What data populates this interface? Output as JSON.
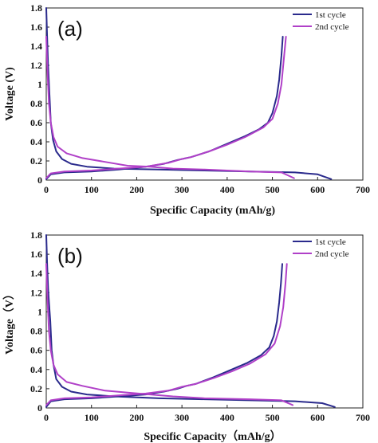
{
  "chart_data": [
    {
      "type": "line",
      "panel_label": "(a)",
      "xlabel": "Specific Capacity (mAh/g)",
      "ylabel": "Voltage (V)",
      "xlim": [
        0,
        700
      ],
      "ylim": [
        0,
        1.8
      ],
      "xticks": [
        0,
        100,
        200,
        300,
        400,
        500,
        600,
        700
      ],
      "yticks": [
        0,
        0.2,
        0.4,
        0.6,
        0.8,
        1,
        1.2,
        1.4,
        1.6,
        1.8
      ],
      "grid": false,
      "legend_position": "top-right",
      "series": [
        {
          "name": "1st cycle",
          "color": "#2a2a8c",
          "segments": [
            {
              "points": [
                [
                  0,
                  1.8
                ],
                [
                  2,
                  1.5
                ],
                [
                  4,
                  1.2
                ],
                [
                  7,
                  0.9
                ],
                [
                  10,
                  0.6
                ],
                [
                  15,
                  0.42
                ],
                [
                  22,
                  0.3
                ],
                [
                  35,
                  0.22
                ],
                [
                  55,
                  0.17
                ],
                [
                  90,
                  0.14
                ],
                [
                  150,
                  0.12
                ],
                [
                  250,
                  0.11
                ],
                [
                  350,
                  0.1
                ],
                [
                  450,
                  0.09
                ],
                [
                  550,
                  0.08
                ],
                [
                  600,
                  0.06
                ],
                [
                  630,
                  0.01
                ]
              ]
            },
            {
              "points": [
                [
                  0,
                  0.01
                ],
                [
                  10,
                  0.06
                ],
                [
                  40,
                  0.08
                ],
                [
                  100,
                  0.09
                ],
                [
                  160,
                  0.11
                ],
                [
                  220,
                  0.14
                ],
                [
                  260,
                  0.17
                ],
                [
                  290,
                  0.21
                ],
                [
                  310,
                  0.23
                ],
                [
                  320,
                  0.24
                ],
                [
                  360,
                  0.3
                ],
                [
                  400,
                  0.38
                ],
                [
                  440,
                  0.46
                ],
                [
                  470,
                  0.53
                ],
                [
                  490,
                  0.6
                ],
                [
                  500,
                  0.7
                ],
                [
                  510,
                  0.88
                ],
                [
                  515,
                  1.05
                ],
                [
                  520,
                  1.3
                ],
                [
                  523,
                  1.5
                ]
              ]
            }
          ]
        },
        {
          "name": "2nd cycle",
          "color": "#b040c8",
          "segments": [
            {
              "points": [
                [
                  0,
                  1.5
                ],
                [
                  3,
                  1.1
                ],
                [
                  6,
                  0.8
                ],
                [
                  10,
                  0.6
                ],
                [
                  16,
                  0.45
                ],
                [
                  25,
                  0.35
                ],
                [
                  45,
                  0.28
                ],
                [
                  80,
                  0.23
                ],
                [
                  130,
                  0.19
                ],
                [
                  180,
                  0.15
                ],
                [
                  230,
                  0.14
                ],
                [
                  280,
                  0.12
                ],
                [
                  350,
                  0.11
                ],
                [
                  450,
                  0.09
                ],
                [
                  520,
                  0.08
                ],
                [
                  548,
                  0.02
                ]
              ]
            },
            {
              "points": [
                [
                  0,
                  0.02
                ],
                [
                  10,
                  0.07
                ],
                [
                  40,
                  0.09
                ],
                [
                  100,
                  0.1
                ],
                [
                  160,
                  0.12
                ],
                [
                  220,
                  0.14
                ],
                [
                  270,
                  0.18
                ],
                [
                  300,
                  0.22
                ],
                [
                  320,
                  0.24
                ],
                [
                  360,
                  0.3
                ],
                [
                  400,
                  0.37
                ],
                [
                  440,
                  0.45
                ],
                [
                  480,
                  0.55
                ],
                [
                  500,
                  0.64
                ],
                [
                  512,
                  0.8
                ],
                [
                  520,
                  1.0
                ],
                [
                  526,
                  1.3
                ],
                [
                  530,
                  1.5
                ]
              ]
            }
          ]
        }
      ]
    },
    {
      "type": "line",
      "panel_label": "(b)",
      "xlabel": "Specific Capacity（mAh/g）",
      "ylabel": "Voltage（V）",
      "xlim": [
        0,
        700
      ],
      "ylim": [
        0,
        1.8
      ],
      "xticks": [
        0,
        100,
        200,
        300,
        400,
        500,
        600,
        700
      ],
      "yticks": [
        0,
        0.2,
        0.4,
        0.6,
        0.8,
        1,
        1.2,
        1.4,
        1.6,
        1.8
      ],
      "grid": false,
      "legend_position": "top-right",
      "series": [
        {
          "name": "1st cycle",
          "color": "#2a2a8c",
          "segments": [
            {
              "points": [
                [
                  0,
                  1.8
                ],
                [
                  2,
                  1.5
                ],
                [
                  4,
                  1.25
                ],
                [
                  6,
                  1.1
                ],
                [
                  9,
                  0.9
                ],
                [
                  12,
                  0.6
                ],
                [
                  16,
                  0.45
                ],
                [
                  22,
                  0.3
                ],
                [
                  35,
                  0.22
                ],
                [
                  55,
                  0.17
                ],
                [
                  90,
                  0.14
                ],
                [
                  150,
                  0.12
                ],
                [
                  250,
                  0.1
                ],
                [
                  350,
                  0.09
                ],
                [
                  450,
                  0.08
                ],
                [
                  550,
                  0.07
                ],
                [
                  610,
                  0.05
                ],
                [
                  638,
                  0.01
                ]
              ]
            },
            {
              "points": [
                [
                  0,
                  0.01
                ],
                [
                  10,
                  0.07
                ],
                [
                  40,
                  0.09
                ],
                [
                  100,
                  0.1
                ],
                [
                  160,
                  0.12
                ],
                [
                  220,
                  0.14
                ],
                [
                  260,
                  0.17
                ],
                [
                  290,
                  0.2
                ],
                [
                  310,
                  0.23
                ],
                [
                  330,
                  0.25
                ],
                [
                  370,
                  0.32
                ],
                [
                  410,
                  0.4
                ],
                [
                  445,
                  0.47
                ],
                [
                  475,
                  0.55
                ],
                [
                  493,
                  0.63
                ],
                [
                  503,
                  0.75
                ],
                [
                  510,
                  0.9
                ],
                [
                  515,
                  1.1
                ],
                [
                  519,
                  1.3
                ],
                [
                  522,
                  1.5
                ]
              ]
            }
          ]
        },
        {
          "name": "2nd cycle",
          "color": "#b040c8",
          "segments": [
            {
              "points": [
                [
                  0,
                  1.5
                ],
                [
                  3,
                  1.1
                ],
                [
                  6,
                  0.8
                ],
                [
                  10,
                  0.6
                ],
                [
                  16,
                  0.45
                ],
                [
                  25,
                  0.35
                ],
                [
                  45,
                  0.27
                ],
                [
                  80,
                  0.23
                ],
                [
                  130,
                  0.18
                ],
                [
                  180,
                  0.16
                ],
                [
                  230,
                  0.14
                ],
                [
                  280,
                  0.12
                ],
                [
                  350,
                  0.1
                ],
                [
                  450,
                  0.09
                ],
                [
                  520,
                  0.08
                ],
                [
                  545,
                  0.03
                ]
              ]
            },
            {
              "points": [
                [
                  0,
                  0.03
                ],
                [
                  10,
                  0.08
                ],
                [
                  40,
                  0.1
                ],
                [
                  100,
                  0.11
                ],
                [
                  160,
                  0.13
                ],
                [
                  220,
                  0.15
                ],
                [
                  270,
                  0.18
                ],
                [
                  300,
                  0.22
                ],
                [
                  330,
                  0.25
                ],
                [
                  370,
                  0.31
                ],
                [
                  410,
                  0.38
                ],
                [
                  450,
                  0.46
                ],
                [
                  485,
                  0.56
                ],
                [
                  505,
                  0.67
                ],
                [
                  517,
                  0.85
                ],
                [
                  524,
                  1.05
                ],
                [
                  529,
                  1.3
                ],
                [
                  532,
                  1.5
                ]
              ]
            }
          ]
        }
      ]
    }
  ]
}
